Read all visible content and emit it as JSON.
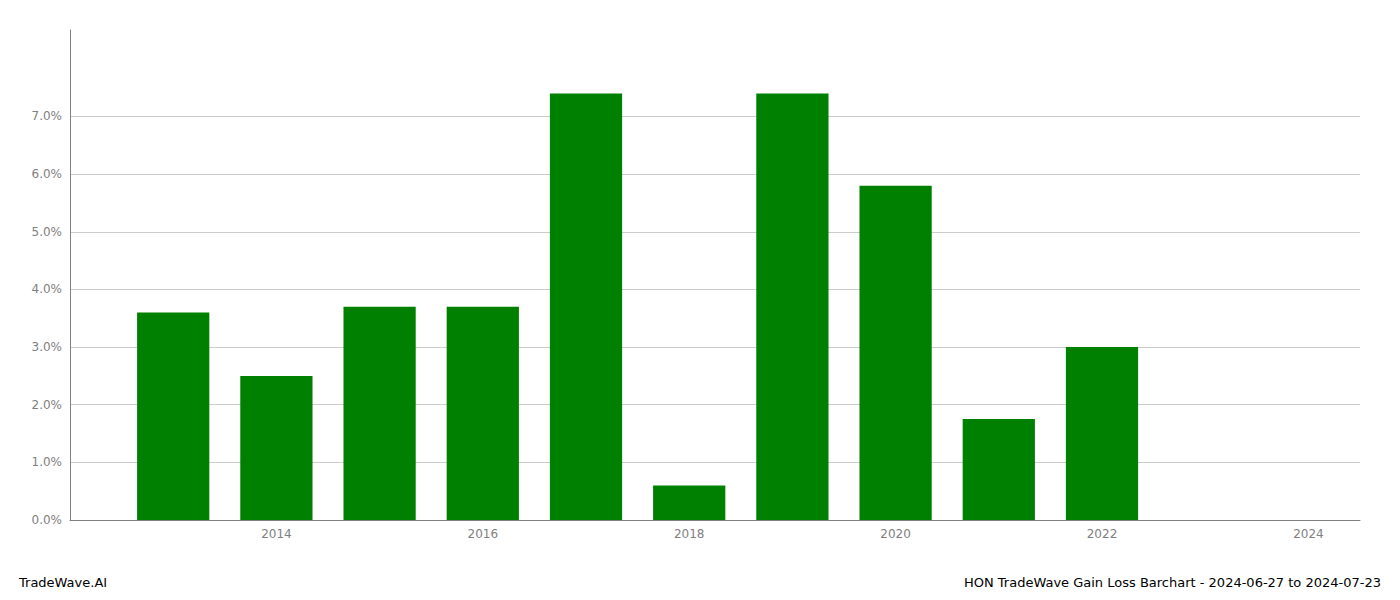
{
  "chart_data": {
    "type": "bar",
    "title": "HON TradeWave Gain Loss Barchart - 2024-06-27 to 2024-07-23",
    "annotations": [
      "TradeWave.AI"
    ],
    "x": [
      2013,
      2014,
      2015,
      2016,
      2017,
      2018,
      2019,
      2020,
      2021,
      2022,
      2023
    ],
    "values": [
      0.036,
      0.025,
      0.037,
      0.037,
      0.074,
      0.006,
      0.074,
      0.058,
      0.0175,
      0.03,
      0.0
    ],
    "color": "#008000",
    "xlim": [
      2012.0,
      2024.5
    ],
    "xticks": [
      2014,
      2016,
      2018,
      2020,
      2022,
      2024
    ],
    "ylim": [
      0.0,
      0.085
    ],
    "yticks": [
      {
        "value": 0.0,
        "label": "0.0%"
      },
      {
        "value": 0.01,
        "label": "1.0%"
      },
      {
        "value": 0.02,
        "label": "2.0%"
      },
      {
        "value": 0.03,
        "label": "3.0%"
      },
      {
        "value": 0.04,
        "label": "4.0%"
      },
      {
        "value": 0.05,
        "label": "5.0%"
      },
      {
        "value": 0.06,
        "label": "6.0%"
      },
      {
        "value": 0.07,
        "label": "7.0%"
      }
    ],
    "grid": true
  }
}
